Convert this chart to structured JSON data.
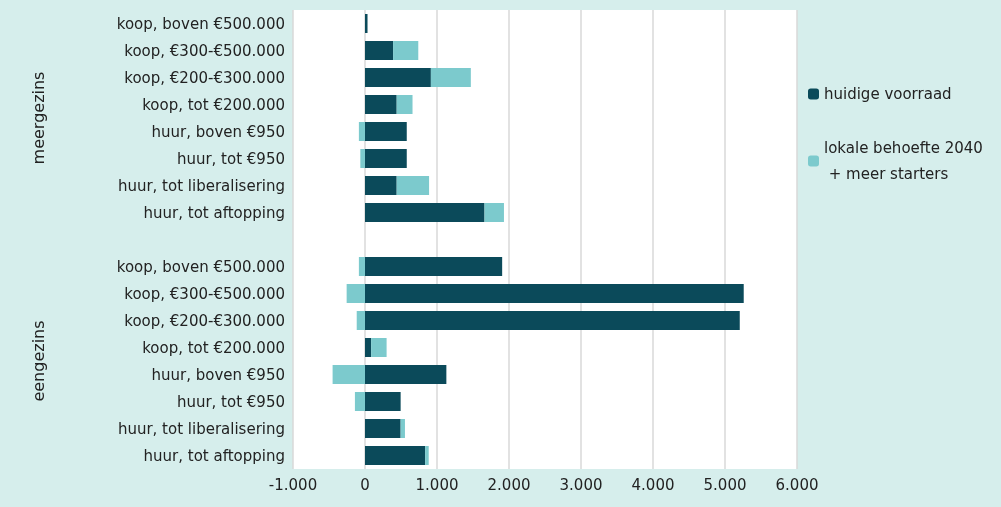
{
  "chart_data": {
    "type": "bar",
    "orientation": "horizontal",
    "stacked": true,
    "categories": [
      "koop, boven €500.000",
      "koop, €300-€500.000",
      "koop, €200-€300.000",
      "koop, tot €200.000",
      "huur, boven €950",
      "huur, tot €950",
      "huur, tot liberalisering",
      "huur, tot aftopping",
      null,
      "koop, boven €500.000",
      "koop, €300-€500.000",
      "koop, €200-€300.000",
      "koop, tot €200.000",
      "huur, boven €950",
      "huur, tot €950",
      "huur, tot liberalisering",
      "huur, tot aftopping"
    ],
    "series": [
      {
        "name": "huidige voorraad",
        "color": "#0b4a5a",
        "values": [
          35,
          390,
          915,
          440,
          580,
          580,
          440,
          1660,
          null,
          1905,
          5260,
          5205,
          85,
          1130,
          495,
          495,
          835
        ]
      },
      {
        "name": "lokale behoefte 2040 + meer starters",
        "color": "#7ccacd",
        "values": [
          0,
          350,
          555,
          220,
          -85,
          -65,
          450,
          270,
          null,
          -85,
          -255,
          -115,
          215,
          -450,
          -140,
          60,
          50
        ]
      }
    ],
    "xlim": [
      -1000,
      6000
    ],
    "xticks": [
      {
        "value": -1000,
        "label": "-1.000"
      },
      0,
      {
        "value": 1000,
        "label": "1.000"
      },
      {
        "value": 2000,
        "label": "2.000"
      },
      {
        "value": 3000,
        "label": "3.000"
      },
      {
        "value": 4000,
        "label": "4.000"
      },
      {
        "value": 5000,
        "label": "5.000"
      },
      {
        "value": 6000,
        "label": "6.000"
      }
    ],
    "grid": "x",
    "legend": "right",
    "annotations": [
      "meergezins",
      "eengezins"
    ]
  }
}
